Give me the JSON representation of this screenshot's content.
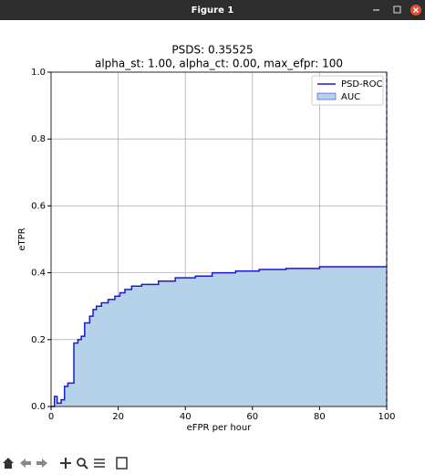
{
  "window": {
    "title": "Figure 1"
  },
  "chart_data": {
    "type": "step",
    "title": "PSDS: 0.35525",
    "subtitle": "alpha_st: 1.00, alpha_ct: 0.00, max_efpr: 100",
    "x_label": "eFPR per hour",
    "y_label": "eTPR",
    "xlim": [
      0,
      100
    ],
    "ylim": [
      0,
      1
    ],
    "xticks": [
      0,
      20,
      40,
      60,
      80,
      100
    ],
    "yticks": [
      {
        "value": 0,
        "label": "0.0"
      },
      0.2,
      0.4,
      0.6,
      0.8,
      {
        "value": 1,
        "label": "1.0"
      }
    ],
    "grid": true,
    "legend": "upper right",
    "vline_x": 100,
    "fill": {
      "name": "AUC",
      "color": "#b5d2e8"
    },
    "series": [
      {
        "name": "PSD-ROC",
        "color": "#1a1ad6",
        "x": [
          0,
          1,
          1,
          1.8,
          1.8,
          3,
          3,
          4,
          4,
          5,
          5,
          6.8,
          6.8,
          8,
          8,
          9,
          9,
          10,
          10,
          11.5,
          11.5,
          12.5,
          12.5,
          13.5,
          13.5,
          15,
          15,
          17,
          17,
          19,
          19,
          20.5,
          20.5,
          22,
          22,
          24,
          24,
          27,
          27,
          32,
          32,
          37,
          37,
          43,
          43,
          48,
          48,
          55,
          55,
          62,
          62,
          70,
          70,
          80,
          80,
          100
        ],
        "values": [
          0,
          0,
          0.03,
          0.03,
          0.01,
          0.01,
          0.02,
          0.02,
          0.06,
          0.06,
          0.07,
          0.07,
          0.19,
          0.19,
          0.2,
          0.2,
          0.21,
          0.21,
          0.25,
          0.25,
          0.27,
          0.27,
          0.29,
          0.29,
          0.3,
          0.3,
          0.31,
          0.31,
          0.32,
          0.32,
          0.33,
          0.33,
          0.34,
          0.34,
          0.35,
          0.35,
          0.36,
          0.36,
          0.365,
          0.365,
          0.375,
          0.375,
          0.385,
          0.385,
          0.39,
          0.39,
          0.4,
          0.4,
          0.405,
          0.405,
          0.41,
          0.41,
          0.413,
          0.413,
          0.418,
          0.418
        ]
      }
    ]
  }
}
